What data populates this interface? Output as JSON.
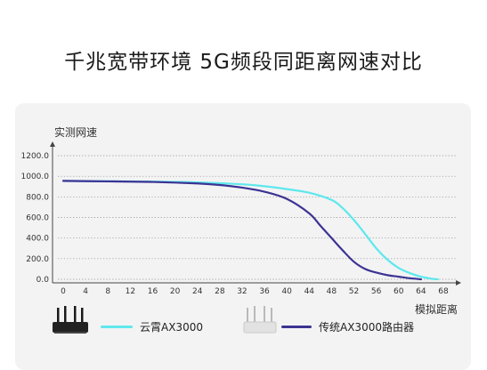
{
  "headline": "千兆宽带环境 5G频段同距离网速对比",
  "legend_items": [
    {
      "label": "云霄AX3000",
      "color": "#5ee8ec",
      "product_icon": "black-router-icon"
    },
    {
      "label": "传统AX3000路由器",
      "color": "#3c3393",
      "product_icon": "white-router-icon"
    }
  ],
  "chart_data": {
    "type": "line",
    "ylabel": "实测网速",
    "xlabel": "模拟距离",
    "ylim": [
      0,
      1200
    ],
    "xlim": [
      0,
      68
    ],
    "y_ticks": [
      "0.0",
      "200.0",
      "400.0",
      "600.0",
      "800.0",
      "1000.0",
      "1200.0"
    ],
    "x_ticks": [
      "0",
      "4",
      "8",
      "12",
      "16",
      "20",
      "24",
      "28",
      "32",
      "36",
      "40",
      "44",
      "48",
      "52",
      "56",
      "60",
      "64",
      "68"
    ],
    "grid": "horizontal-dotted",
    "series": [
      {
        "name": "云霄AX3000",
        "color": "#5ee8ec",
        "x": [
          0,
          8,
          16,
          24,
          32,
          36,
          40,
          44,
          48,
          50,
          52,
          54,
          56,
          58,
          60,
          62,
          64,
          66,
          67
        ],
        "y": [
          955,
          952,
          948,
          940,
          922,
          903,
          875,
          840,
          770,
          690,
          575,
          440,
          300,
          190,
          110,
          60,
          25,
          5,
          0
        ]
      },
      {
        "name": "传统AX3000路由器",
        "color": "#3c3393",
        "x": [
          0,
          8,
          16,
          24,
          28,
          32,
          36,
          40,
          44,
          46,
          48,
          50,
          52,
          54,
          56,
          58,
          60,
          62,
          64
        ],
        "y": [
          955,
          950,
          945,
          930,
          915,
          890,
          850,
          780,
          640,
          520,
          400,
          280,
          170,
          100,
          65,
          40,
          25,
          10,
          0
        ]
      }
    ]
  }
}
